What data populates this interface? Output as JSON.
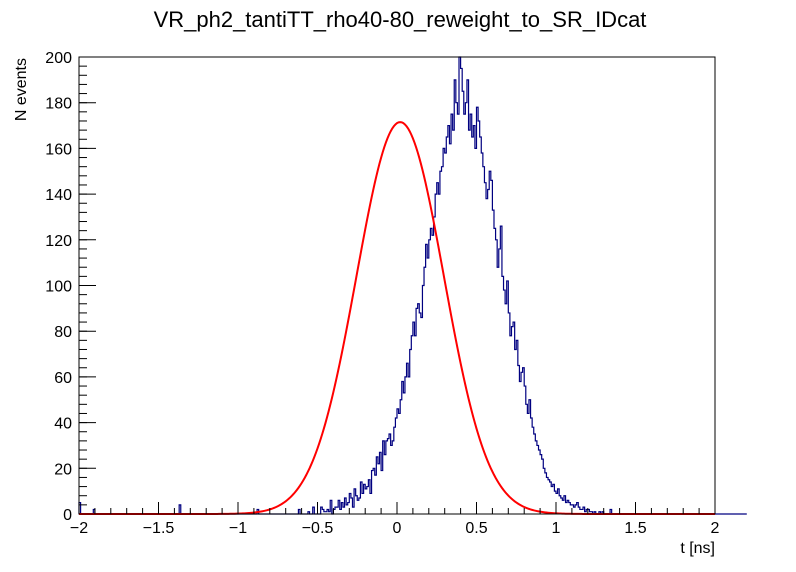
{
  "chart_data": {
    "type": "histogram",
    "title": "VR_ph2_tantiTT_rho40-80_reweight_to_SR_IDcat",
    "xlabel": "t [ns]",
    "ylabel": "N events",
    "xlim": [
      -2,
      2
    ],
    "ylim": [
      0,
      200
    ],
    "x_ticks": [
      "−2",
      "−1.5",
      "−1",
      "−0.5",
      "0",
      "0.5",
      "1",
      "1.5",
      "2"
    ],
    "y_ticks": [
      "0",
      "20",
      "40",
      "60",
      "80",
      "100",
      "120",
      "140",
      "160",
      "180",
      "200"
    ],
    "grid": false,
    "legend": "none",
    "bins": {
      "min": -2.0,
      "width": 0.01,
      "counts": [
        5,
        0,
        0,
        0,
        0,
        0,
        0,
        0,
        0,
        2,
        0,
        0,
        0,
        0,
        0,
        0,
        0,
        0,
        0,
        0,
        0,
        0,
        0,
        0,
        0,
        0,
        0,
        0,
        0,
        0,
        0,
        0,
        0,
        0,
        0,
        0,
        0,
        0,
        0,
        0,
        0,
        0,
        0,
        0,
        0,
        0,
        0,
        0,
        0,
        0,
        0,
        0,
        0,
        0,
        0,
        0,
        0,
        0,
        0,
        0,
        0,
        0,
        0,
        4,
        0,
        0,
        0,
        0,
        0,
        0,
        0,
        0,
        0,
        0,
        0,
        0,
        0,
        0,
        0,
        0,
        0,
        0,
        0,
        0,
        0,
        0,
        0,
        0,
        0,
        0,
        0,
        0,
        0,
        0,
        0,
        0,
        0,
        0,
        0,
        0,
        0,
        0,
        0,
        0,
        0,
        0,
        0,
        0,
        0,
        0,
        0,
        0,
        2,
        0,
        0,
        0,
        0,
        0,
        0,
        0,
        0,
        0,
        0,
        0,
        0,
        0,
        0,
        0,
        0,
        0,
        0,
        0,
        0,
        0,
        0,
        0,
        0,
        0,
        2,
        0,
        0,
        0,
        0,
        0,
        1,
        0,
        0,
        3,
        0,
        0,
        0,
        0,
        3,
        2,
        1,
        1,
        2,
        1,
        6,
        0,
        2,
        3,
        3,
        6,
        2,
        5,
        3,
        7,
        4,
        5,
        9,
        7,
        3,
        11,
        8,
        6,
        7,
        14,
        9,
        13,
        11,
        12,
        15,
        9,
        19,
        20,
        17,
        25,
        22,
        27,
        19,
        32,
        26,
        32,
        33,
        35,
        30,
        32,
        38,
        42,
        46,
        44,
        50,
        58,
        53,
        60,
        66,
        60,
        72,
        78,
        84,
        78,
        90,
        92,
        88,
        86,
        100,
        108,
        118,
        112,
        120,
        125,
        122,
        130,
        140,
        145,
        140,
        150,
        152,
        160,
        158,
        165,
        170,
        162,
        175,
        168,
        190,
        180,
        175,
        200,
        195,
        185,
        175,
        180,
        190,
        168,
        175,
        165,
        170,
        160,
        178,
        172,
        165,
        158,
        152,
        145,
        138,
        142,
        150,
        146,
        133,
        125,
        120,
        108,
        116,
        126,
        104,
        98,
        92,
        102,
        88,
        78,
        82,
        84,
        72,
        76,
        65,
        58,
        62,
        64,
        56,
        48,
        44,
        50,
        42,
        38,
        35,
        32,
        30,
        28,
        26,
        24,
        20,
        18,
        16,
        15,
        14,
        12,
        13,
        10,
        9,
        11,
        8,
        7,
        6,
        8,
        5,
        6,
        5,
        4,
        4,
        3,
        4,
        5,
        3,
        2,
        2,
        3,
        1,
        2,
        2,
        1,
        1,
        0,
        1,
        0,
        0,
        1,
        0,
        1,
        0,
        0,
        0,
        0,
        2,
        0,
        0,
        0,
        0,
        0,
        0,
        0,
        0,
        0,
        0,
        0,
        0,
        0,
        0,
        0,
        0,
        0,
        0,
        0,
        0,
        0,
        0,
        0,
        0,
        0,
        0,
        0,
        0,
        0,
        0,
        0,
        0,
        0,
        0,
        0,
        0,
        0,
        0,
        0,
        0,
        0,
        0,
        0,
        0,
        0,
        0,
        0,
        0,
        0,
        0,
        0,
        0,
        0,
        0,
        0,
        0,
        0,
        0,
        0,
        0,
        0,
        0,
        0,
        0,
        0,
        0,
        0,
        0,
        0,
        0,
        0,
        0,
        0,
        0,
        0,
        0,
        0,
        0,
        0,
        0,
        0,
        0,
        0,
        0,
        0
      ]
    },
    "fit": {
      "function": "gaussian",
      "amplitude": 171.5,
      "mean": 0.02,
      "sigma": 0.275,
      "range": [
        -2,
        2
      ]
    },
    "colors": {
      "histogram": "#000080",
      "fit": "#ff0000",
      "frame": "#000000"
    }
  }
}
